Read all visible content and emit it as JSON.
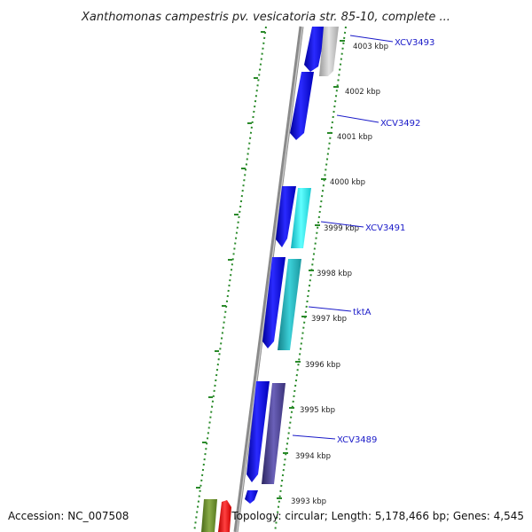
{
  "title": "Xanthomonas campestris pv. vesicatoria str. 85-10, complete ...",
  "ticks": [
    "4003 kbp",
    "4002 kbp",
    "4001 kbp",
    "4000 kbp",
    "3999 kbp",
    "3998 kbp",
    "3997 kbp",
    "3996 kbp",
    "3995 kbp",
    "3994 kbp",
    "3993 kbp"
  ],
  "gene_labels": [
    "XCV3493",
    "XCV3492",
    "XCV3491",
    "tktA",
    "XCV3489"
  ],
  "footer": {
    "accession": "Accession: NC_007508",
    "topology": "Topology: circular; Length: 5,178,466 bp; Genes: 4,545"
  },
  "colors": {
    "backbone": "#8a8a8a",
    "tick_dots": "#2a8a2a",
    "gene_blue": "#1010e0",
    "gene_gray": "#bdbdbd",
    "gene_cyan": "#22e6ee",
    "gene_teal": "#22b0b8",
    "gene_slate": "#4a4090",
    "gene_olive": "#6a8a30",
    "gene_red": "#ee1111",
    "label_blue": "#1a1ac8"
  }
}
